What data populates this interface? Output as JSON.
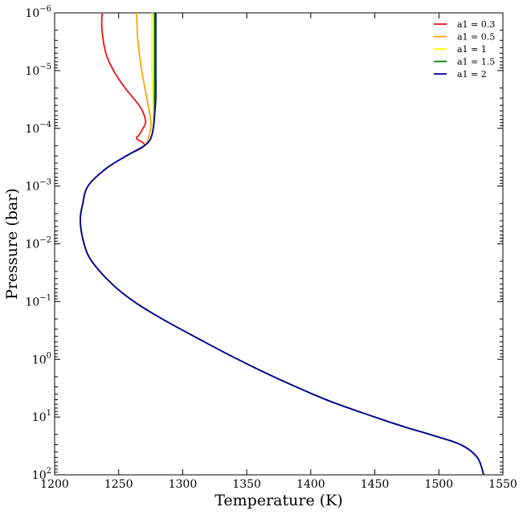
{
  "chart_data": {
    "type": "line",
    "xlabel": "Temperature (K)",
    "ylabel": "Pressure (bar)",
    "xlim": [
      1200,
      1550
    ],
    "ylim": [
      100,
      1e-06
    ],
    "y_scale": "log",
    "y_inverted": true,
    "x_ticks": [
      1200,
      1250,
      1300,
      1350,
      1400,
      1450,
      1500,
      1550
    ],
    "y_ticks": [
      {
        "base": "10",
        "exp": "−6",
        "value": 1e-06
      },
      {
        "base": "10",
        "exp": "−5",
        "value": 1e-05
      },
      {
        "base": "10",
        "exp": "−4",
        "value": 0.0001
      },
      {
        "base": "10",
        "exp": "−3",
        "value": 0.001
      },
      {
        "base": "10",
        "exp": "−2",
        "value": 0.01
      },
      {
        "base": "10",
        "exp": "−1",
        "value": 0.1
      },
      {
        "base": "10",
        "exp": "0",
        "value": 1
      },
      {
        "base": "10",
        "exp": "1",
        "value": 10
      },
      {
        "base": "10",
        "exp": "2",
        "value": 100
      }
    ],
    "grid": false,
    "legend_position": "top-right",
    "common_profile": {
      "pressure": [
        0.0002,
        0.0003,
        0.0005,
        0.001,
        0.002,
        0.004,
        0.01,
        0.02,
        0.05,
        0.1,
        0.2,
        0.5,
        1,
        2,
        5,
        10,
        15,
        20,
        30,
        50,
        100
      ],
      "temperature": [
        1270,
        1256,
        1240,
        1226,
        1222,
        1220,
        1223,
        1229,
        1245,
        1262,
        1284,
        1317,
        1343,
        1371,
        1412,
        1450,
        1474,
        1493,
        1517,
        1530,
        1535
      ]
    },
    "series": [
      {
        "name": "a1 = 0.3",
        "color": "#ee1111",
        "pressure": [
          1e-06,
          2e-06,
          5e-06,
          1e-05,
          2e-05,
          4e-05,
          6e-05,
          8e-05,
          0.0001,
          0.00013,
          0.00015,
          0.0002
        ],
        "temperature": [
          1237,
          1237,
          1240,
          1246,
          1255,
          1266,
          1270,
          1271,
          1269,
          1266,
          1264,
          1270
        ]
      },
      {
        "name": "a1 = 0.5",
        "color": "#ffa500",
        "pressure": [
          1e-06,
          3e-06,
          1e-05,
          3e-05,
          7e-05,
          0.0001,
          0.00015,
          0.0002
        ],
        "temperature": [
          1264,
          1265,
          1268,
          1272,
          1275,
          1275,
          1273,
          1270
        ]
      },
      {
        "name": "a1 = 1",
        "color": "#ffff00",
        "pressure": [
          1e-06,
          1e-05,
          3e-05,
          5e-05,
          0.0001,
          0.00015,
          0.0002
        ],
        "temperature": [
          1276,
          1276,
          1277,
          1277,
          1277,
          1275,
          1270
        ]
      },
      {
        "name": "a1 = 1.5",
        "color": "#008000",
        "pressure": [
          1e-06,
          1e-05,
          3e-05,
          6e-05,
          0.0001,
          0.00015,
          0.0002
        ],
        "temperature": [
          1278,
          1278,
          1278,
          1278,
          1277,
          1275,
          1270
        ]
      },
      {
        "name": "a1 = 2",
        "color": "#0000aa",
        "pressure": [
          1e-06,
          1e-05,
          3e-05,
          6e-05,
          0.0001,
          0.00015,
          0.0002
        ],
        "temperature": [
          1279,
          1279,
          1279,
          1278,
          1277,
          1275,
          1270
        ]
      }
    ]
  }
}
